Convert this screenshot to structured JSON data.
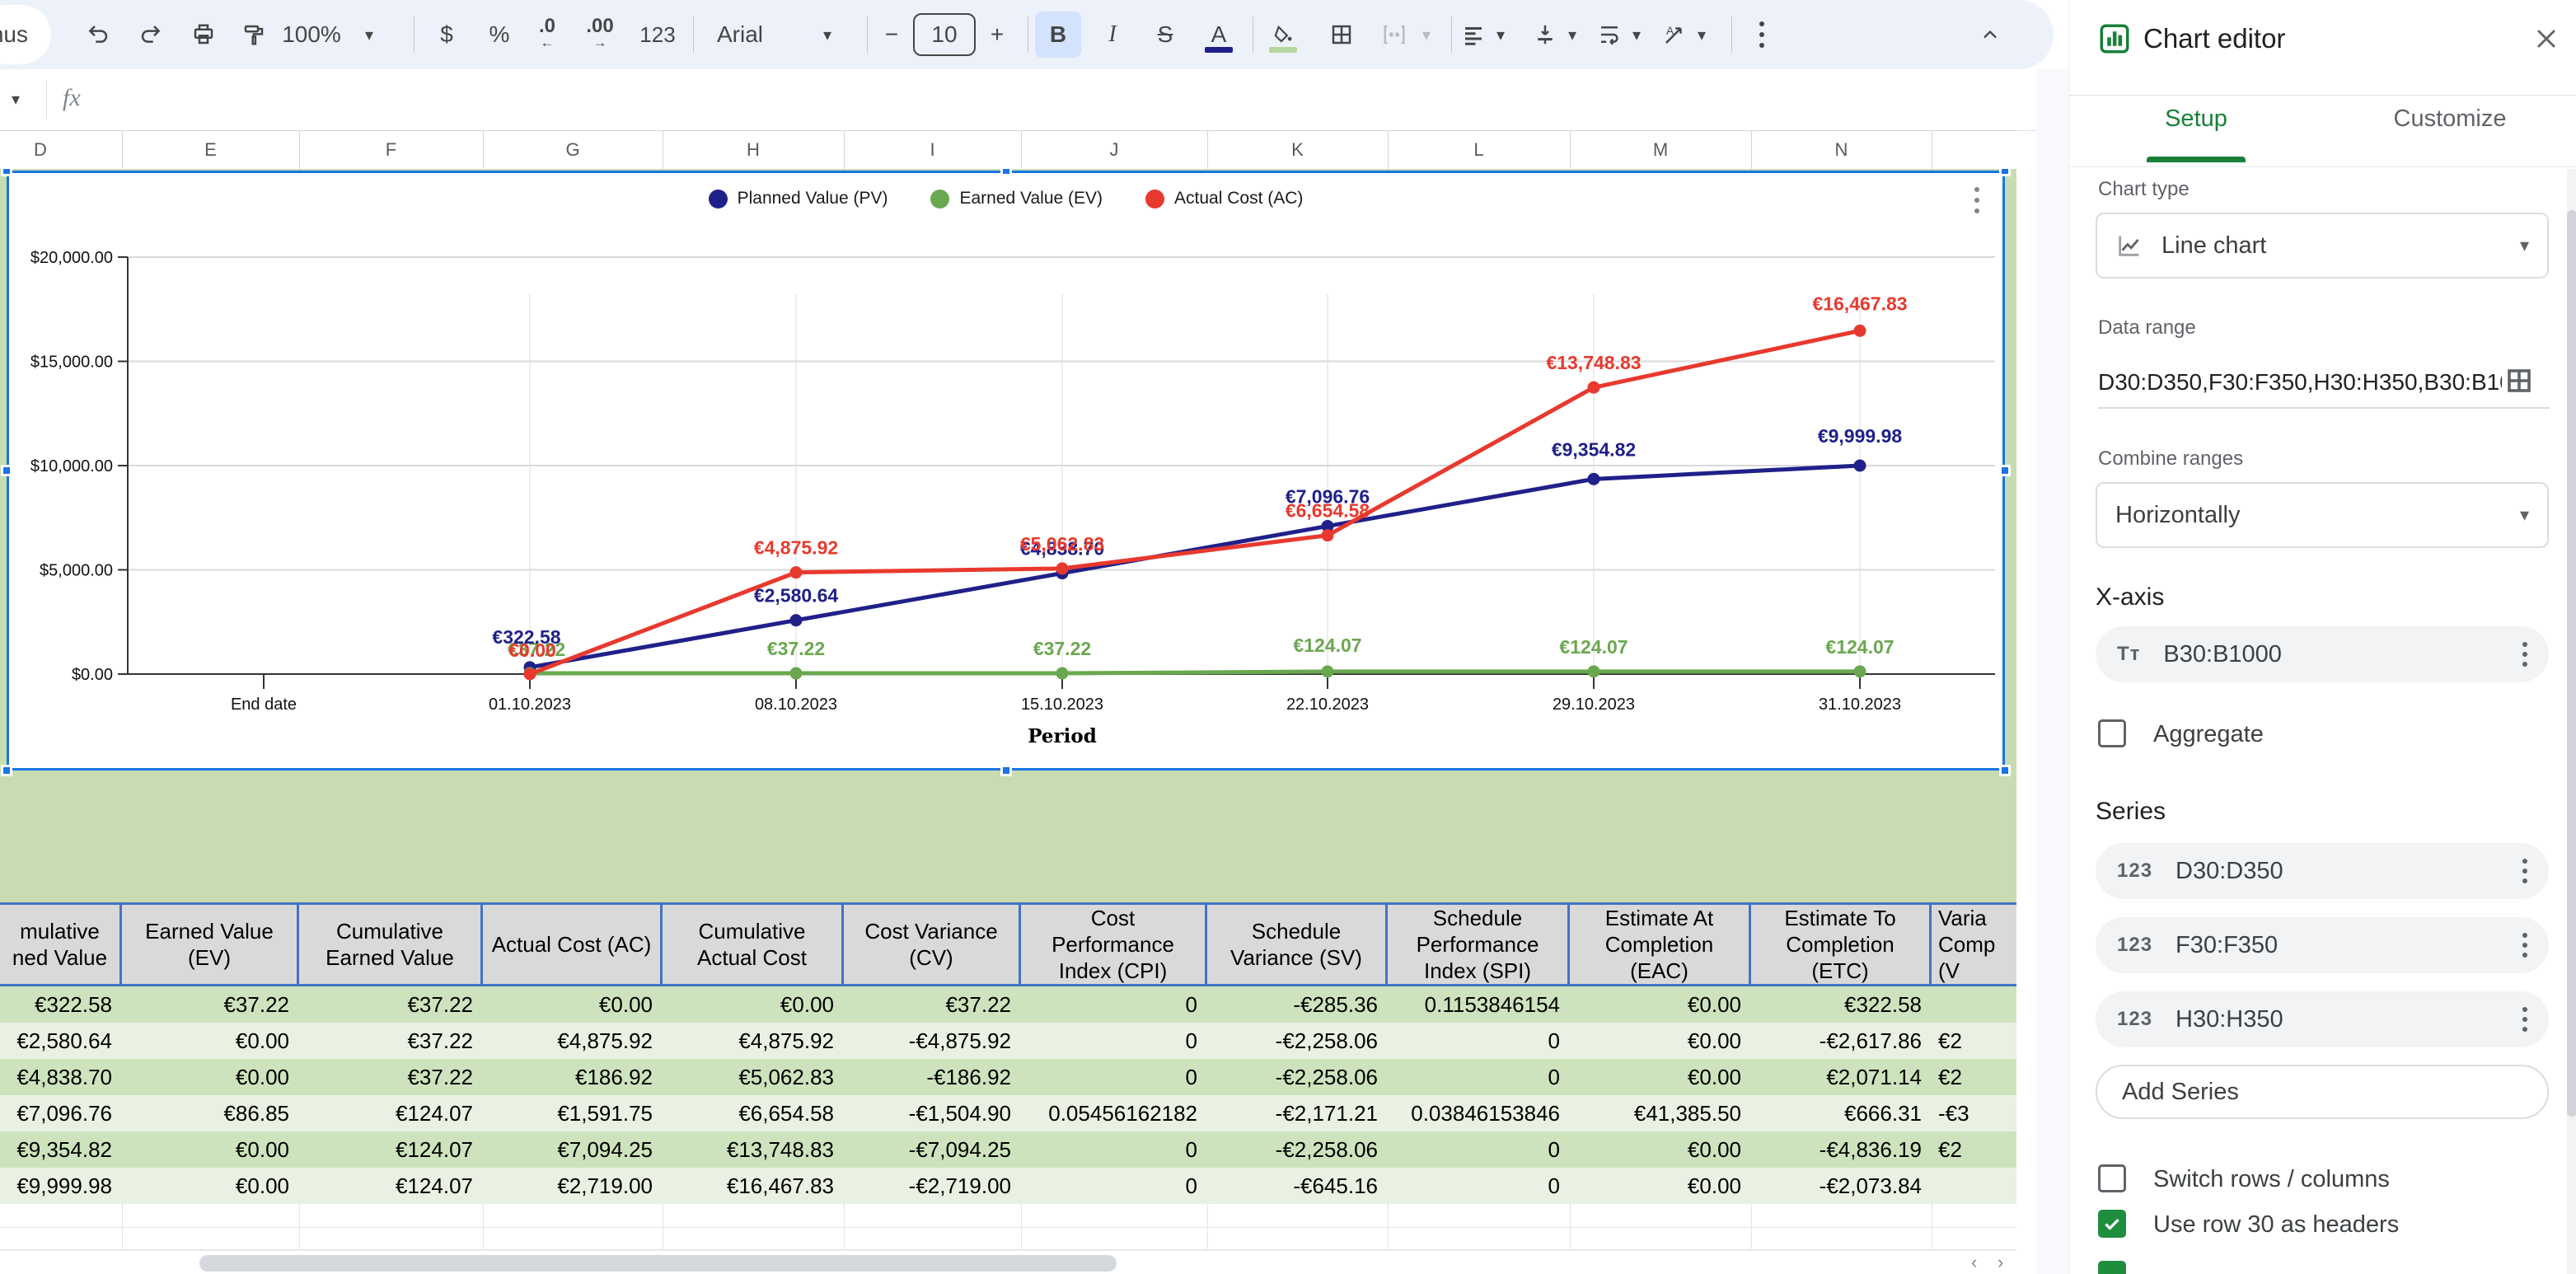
{
  "toolbar": {
    "menus_fragment": "nus",
    "zoom": "100%",
    "currency": "$",
    "percent": "%",
    "decrease_decimal": ".0",
    "increase_decimal": ".00",
    "more_formats": "123",
    "font": "Arial",
    "font_size": "10",
    "bold": "B",
    "italic": "I",
    "strikethrough": "S",
    "text_color_letter": "A",
    "text_color_hex": "#20208a",
    "fill_color_hex": "#b5d69c"
  },
  "formula_bar": {
    "fx": "fx"
  },
  "sheet": {
    "column_letters": [
      "D",
      "E",
      "F",
      "G",
      "H",
      "I",
      "J",
      "K",
      "L",
      "M",
      "N"
    ]
  },
  "chart_data": {
    "type": "line",
    "title": "",
    "x_title": "Period",
    "legend_position": "top",
    "grid": true,
    "ylim": [
      0,
      20000
    ],
    "y_ticks": [
      {
        "label": "$0.00",
        "value": 0
      },
      {
        "label": "$5,000.00",
        "value": 5000
      },
      {
        "label": "$10,000.00",
        "value": 10000
      },
      {
        "label": "$15,000.00",
        "value": 15000
      },
      {
        "label": "$20,000.00",
        "value": 20000
      }
    ],
    "categories": [
      "End date",
      "01.10.2023",
      "08.10.2023",
      "15.10.2023",
      "22.10.2023",
      "29.10.2023",
      "31.10.2023"
    ],
    "series": [
      {
        "name": "Planned Value (PV)",
        "color": "#20208a",
        "x_index": [
          1,
          2,
          3,
          4,
          5,
          6
        ],
        "values": [
          322.58,
          2580.64,
          4838.7,
          7096.76,
          9354.82,
          9999.98
        ],
        "labels": [
          "€322.58",
          "€2,580.64",
          "€4,838.70",
          "€7,096.76",
          "€9,354.82",
          "€9,999.98"
        ]
      },
      {
        "name": "Earned Value (EV)",
        "color": "#6aa84f",
        "x_index": [
          1,
          2,
          3,
          4,
          5,
          6
        ],
        "values": [
          37.22,
          37.22,
          37.22,
          124.07,
          124.07,
          124.07
        ],
        "labels": [
          "€37.22",
          "€37.22",
          "€37.22",
          "€124.07",
          "€124.07",
          "€124.07"
        ]
      },
      {
        "name": "Actual Cost (AC)",
        "color": "#e8392e",
        "x_index": [
          1,
          2,
          3,
          4,
          5,
          6
        ],
        "values": [
          0,
          4875.92,
          5062.83,
          6654.58,
          13748.83,
          16467.83
        ],
        "labels": [
          "€0.00",
          "€4,875.92",
          "€5,062.83",
          "€6,654.58",
          "€13,748.83",
          "€16,467.83"
        ]
      }
    ]
  },
  "table": {
    "columns": [
      {
        "header_lines": [
          "mulative",
          "ned Value"
        ],
        "align": "right",
        "values": [
          "€322.58",
          "€2,580.64",
          "€4,838.70",
          "€7,096.76",
          "€9,354.82",
          "€9,999.98"
        ]
      },
      {
        "header_lines": [
          "Earned Value",
          "(EV)"
        ],
        "align": "right",
        "values": [
          "€37.22",
          "€0.00",
          "€0.00",
          "€86.85",
          "€0.00",
          "€0.00"
        ]
      },
      {
        "header_lines": [
          "Cumulative",
          "Earned Value"
        ],
        "align": "right",
        "values": [
          "€37.22",
          "€37.22",
          "€37.22",
          "€124.07",
          "€124.07",
          "€124.07"
        ]
      },
      {
        "header_lines": [
          "Actual Cost (AC)"
        ],
        "align": "right",
        "values": [
          "€0.00",
          "€4,875.92",
          "€186.92",
          "€1,591.75",
          "€7,094.25",
          "€2,719.00"
        ]
      },
      {
        "header_lines": [
          "Cumulative",
          "Actual Cost"
        ],
        "align": "right",
        "values": [
          "€0.00",
          "€4,875.92",
          "€5,062.83",
          "€6,654.58",
          "€13,748.83",
          "€16,467.83"
        ]
      },
      {
        "header_lines": [
          "Cost Variance",
          "(CV)"
        ],
        "align": "right",
        "values": [
          "€37.22",
          "-€4,875.92",
          "-€186.92",
          "-€1,504.90",
          "-€7,094.25",
          "-€2,719.00"
        ]
      },
      {
        "header_lines": [
          "Cost",
          "Performance",
          "Index (CPI)"
        ],
        "align": "right",
        "values": [
          "0",
          "0",
          "0",
          "0.05456162182",
          "0",
          "0"
        ]
      },
      {
        "header_lines": [
          "Schedule",
          "Variance (SV)"
        ],
        "align": "right",
        "values": [
          "-€285.36",
          "-€2,258.06",
          "-€2,258.06",
          "-€2,171.21",
          "-€2,258.06",
          "-€645.16"
        ]
      },
      {
        "header_lines": [
          "Schedule",
          "Performance",
          "Index (SPI)"
        ],
        "align": "right",
        "values": [
          "0.1153846154",
          "0",
          "0",
          "0.03846153846",
          "0",
          "0"
        ]
      },
      {
        "header_lines": [
          "Estimate At",
          "Completion",
          "(EAC)"
        ],
        "align": "right",
        "values": [
          "€0.00",
          "€0.00",
          "€0.00",
          "€41,385.50",
          "€0.00",
          "€0.00"
        ]
      },
      {
        "header_lines": [
          "Estimate To",
          "Completion",
          "(ETC)"
        ],
        "align": "right",
        "values": [
          "€322.58",
          "-€2,617.86",
          "€2,071.14",
          "€666.31",
          "-€4,836.19",
          "-€2,073.84"
        ]
      },
      {
        "header_lines": [
          "Varia",
          "Comp",
          "(V"
        ],
        "align": "left",
        "values": [
          "",
          "€2",
          "€2",
          "-€3",
          "€2",
          ""
        ]
      }
    ],
    "row_colors": [
      "#cde3bd",
      "#e9f2e2",
      "#cde3bd",
      "#e9f2e2",
      "#cde3bd",
      "#e9f2e2"
    ],
    "header_bg": "#d9d9d9",
    "border_color": "#4472c4"
  },
  "panel": {
    "title": "Chart editor",
    "tabs": [
      {
        "label": "Setup",
        "active": true
      },
      {
        "label": "Customize",
        "active": false
      }
    ],
    "accent": "#188038",
    "chart_type_label": "Chart type",
    "chart_type_value": "Line chart",
    "data_range_label": "Data range",
    "data_range_value": "D30:D350,F30:F350,H30:H350,B30:B1000",
    "combine_ranges_label": "Combine ranges",
    "combine_ranges_value": "Horizontally",
    "x_axis_label": "X-axis",
    "x_axis_value": "B30:B1000",
    "aggregate_label": "Aggregate",
    "series_label": "Series",
    "series": [
      "D30:D350",
      "F30:F350",
      "H30:H350"
    ],
    "add_series_label": "Add Series",
    "switch_rows_label": "Switch rows / columns",
    "switch_rows_checked": false,
    "use_row_label": "Use row 30 as headers",
    "use_row_checked": true
  }
}
